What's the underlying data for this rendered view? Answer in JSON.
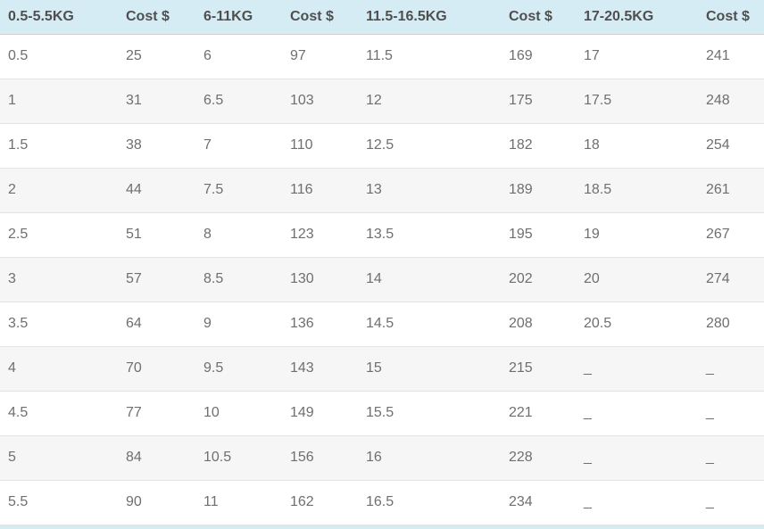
{
  "chart_data": {
    "type": "table",
    "columns": [
      "0.5-5.5KG",
      "Cost $",
      "6-11KG",
      "Cost $",
      "11.5-16.5KG",
      "Cost $",
      "17-20.5KG",
      "Cost $"
    ],
    "rows": [
      [
        "0.5",
        "25",
        "6",
        "97",
        "11.5",
        "169",
        "17",
        "241"
      ],
      [
        "1",
        "31",
        "6.5",
        "103",
        "12",
        "175",
        "17.5",
        "248"
      ],
      [
        "1.5",
        "38",
        "7",
        "110",
        "12.5",
        "182",
        "18",
        "254"
      ],
      [
        "2",
        "44",
        "7.5",
        "116",
        "13",
        "189",
        "18.5",
        "261"
      ],
      [
        "2.5",
        "51",
        "8",
        "123",
        "13.5",
        "195",
        "19",
        "267"
      ],
      [
        "3",
        "57",
        "8.5",
        "130",
        "14",
        "202",
        "20",
        "274"
      ],
      [
        "3.5",
        "64",
        "9",
        "136",
        "14.5",
        "208",
        "20.5",
        "280"
      ],
      [
        "4",
        "70",
        "9.5",
        "143",
        "15",
        "215",
        "_",
        "_"
      ],
      [
        "4.5",
        "77",
        "10",
        "149",
        "15.5",
        "221",
        "_",
        "_"
      ],
      [
        "5",
        "84",
        "10.5",
        "156",
        "16",
        "228",
        "_",
        "_"
      ],
      [
        "5.5",
        "90",
        "11",
        "162",
        "16.5",
        "234",
        "_",
        "_"
      ]
    ],
    "empty_placeholder": "_"
  },
  "colors": {
    "header_bg": "#d6ecf4",
    "header_text": "#4f4f4f",
    "cell_text": "#6f6f6f",
    "alt_row_bg": "#f6f6f6",
    "row_border": "#e3e3e3",
    "header_border": "#cfcfcf"
  }
}
